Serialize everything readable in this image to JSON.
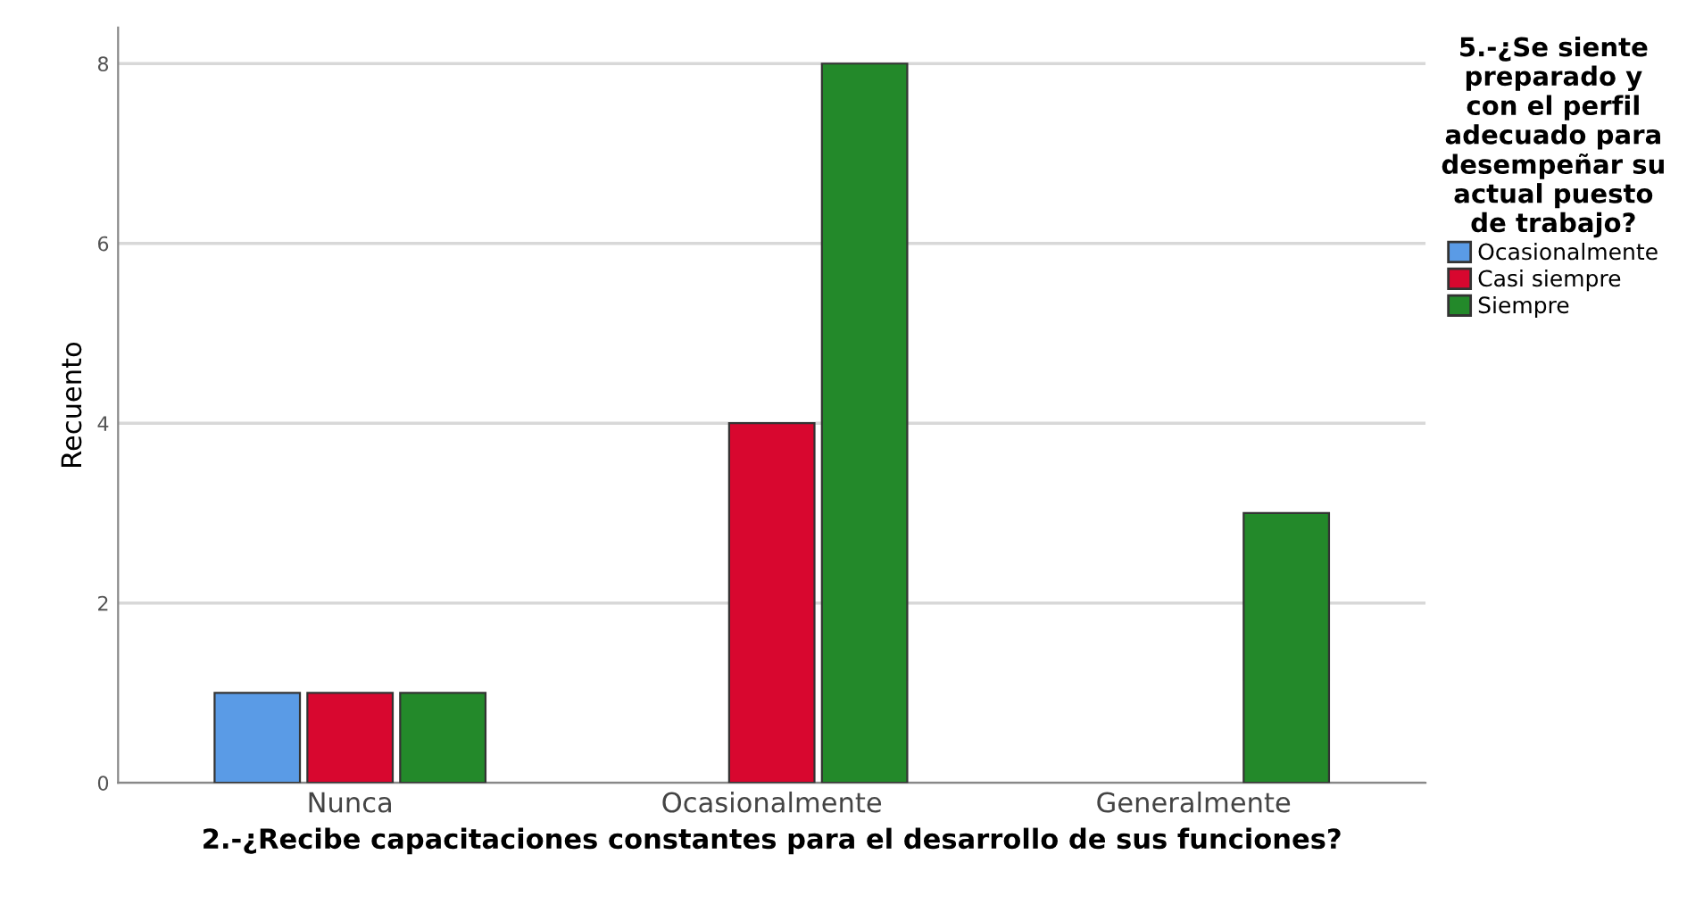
{
  "chart_data": {
    "type": "bar",
    "categories": [
      "Nunca",
      "Ocasionalmente",
      "Generalmente"
    ],
    "series": [
      {
        "name": "Ocasionalmente",
        "color": "#5a9be6",
        "values": [
          1,
          null,
          null
        ]
      },
      {
        "name": "Casi siempre",
        "color": "#d8072f",
        "values": [
          1,
          4,
          null
        ]
      },
      {
        "name": "Siempre",
        "color": "#23892a",
        "values": [
          1,
          8,
          3
        ]
      }
    ],
    "xlabel": "2.-¿Recibe capacitaciones constantes para el desarrollo de sus funciones?",
    "ylabel": "Recuento",
    "legend_title": "5.-¿Se siente preparado y con el perfil adecuado para desempeñar su actual puesto de trabajo?",
    "legend": "right",
    "ylim": [
      0,
      8.4
    ],
    "yticks": [
      0,
      2,
      4,
      6,
      8
    ],
    "grid": "y"
  }
}
